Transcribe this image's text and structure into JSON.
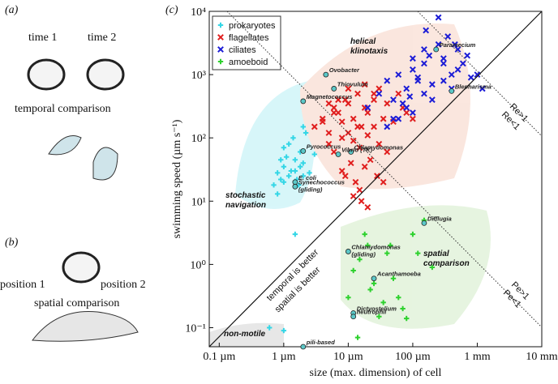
{
  "panels": {
    "a": "(a)",
    "time1": "time 1",
    "time2": "time 2",
    "temporal": "temporal comparison",
    "b": "(b)",
    "pos1": "position 1",
    "pos2": "position 2",
    "spatial": "spatial comparison",
    "c": "(c)"
  },
  "chart_data": {
    "type": "scatter",
    "x_label": "size (max. dimension) of cell",
    "y_label": "swimming speed (µm s⁻¹)",
    "log_x": true,
    "log_y": true,
    "legend": "upper left",
    "xlim": [
      0.07,
      10000
    ],
    "ylim": [
      0.05,
      10000
    ],
    "xticks": [
      {
        "value": 0.1,
        "label": "0.1 µm"
      },
      {
        "value": 1,
        "label": "1 µm"
      },
      {
        "value": 10,
        "label": "10 µm"
      },
      {
        "value": 100,
        "label": "100 µm"
      },
      {
        "value": 1000,
        "label": "1 mm"
      },
      {
        "value": 10000,
        "label": "10 mm"
      }
    ],
    "yticks": [
      {
        "value": 0.1,
        "label": "10⁻¹"
      },
      {
        "value": 1,
        "label": "10⁰"
      },
      {
        "value": 10,
        "label": "10¹"
      },
      {
        "value": 100,
        "label": "10²"
      },
      {
        "value": 1000,
        "label": "10³"
      },
      {
        "value": 10000,
        "label": "10⁴"
      }
    ],
    "series": [
      {
        "name": "prokaryotes",
        "color": "#33d6e6",
        "marker": "plus",
        "x": [
          0.8,
          1,
          1.2,
          1.5,
          1.8,
          2,
          0.9,
          1.1,
          1.3,
          1.6,
          2.5,
          3,
          1,
          0.7,
          1.4,
          2,
          2.2,
          0.9,
          1.8,
          1.5,
          1,
          2,
          1.2,
          0.8,
          1.7,
          1.5,
          1,
          0.6
        ],
        "values": [
          13,
          20,
          25,
          30,
          35,
          40,
          45,
          50,
          30,
          22,
          28,
          55,
          70,
          18,
          100,
          150,
          120,
          22,
          60,
          45,
          35,
          25,
          80,
          28,
          18,
          3,
          0.09,
          0.1
        ]
      },
      {
        "name": "flagellates",
        "color": "#e01e1e",
        "marker": "x",
        "x": [
          3,
          4,
          5,
          6,
          7,
          8,
          9,
          10,
          12,
          14,
          16,
          18,
          20,
          25,
          30,
          35,
          40,
          50,
          60,
          70,
          80,
          100,
          5,
          6,
          8,
          10,
          12,
          15,
          20,
          25,
          30,
          40,
          8,
          9,
          11,
          13,
          15,
          18,
          22,
          28,
          35,
          12,
          16,
          20,
          6,
          7,
          10,
          14,
          18,
          25,
          5,
          4
        ],
        "values": [
          150,
          200,
          120,
          300,
          250,
          180,
          400,
          350,
          200,
          500,
          150,
          300,
          250,
          400,
          600,
          200,
          350,
          180,
          500,
          300,
          250,
          200,
          80,
          60,
          100,
          120,
          90,
          70,
          110,
          150,
          80,
          60,
          30,
          25,
          40,
          20,
          15,
          35,
          45,
          25,
          20,
          12,
          10,
          8,
          250,
          400,
          600,
          150,
          700,
          500,
          350,
          180
        ]
      },
      {
        "name": "ciliates",
        "color": "#1c1cd6",
        "marker": "x",
        "x": [
          20,
          30,
          40,
          50,
          60,
          80,
          100,
          120,
          150,
          180,
          200,
          250,
          300,
          400,
          500,
          600,
          800,
          1000,
          1200,
          60,
          80,
          100,
          150,
          200,
          300,
          400,
          500,
          700,
          40,
          50,
          70,
          90,
          120,
          160,
          250,
          350,
          450,
          100,
          150,
          300
        ],
        "values": [
          300,
          500,
          800,
          400,
          1000,
          600,
          1200,
          900,
          1500,
          2000,
          700,
          3000,
          1800,
          1000,
          2500,
          1500,
          900,
          1000,
          600,
          200,
          300,
          250,
          500,
          400,
          800,
          600,
          1200,
          2000,
          150,
          200,
          350,
          450,
          800,
          5000,
          8000,
          4000,
          3000,
          1800,
          2500,
          1500
        ]
      },
      {
        "name": "amoeboid",
        "color": "#2ed12e",
        "marker": "plus",
        "x": [
          10,
          12,
          15,
          20,
          25,
          30,
          40,
          50,
          60,
          80,
          100,
          150,
          200,
          14,
          18,
          22,
          35,
          45,
          70,
          120
        ],
        "values": [
          0.3,
          0.8,
          1.2,
          2,
          0.5,
          0.15,
          1.5,
          0.6,
          0.3,
          0.14,
          3,
          5,
          0.9,
          0.07,
          3,
          0.4,
          0.25,
          2,
          0.2,
          1.5
        ]
      }
    ],
    "annotations": [
      {
        "lines": [
          "Paramecium"
        ],
        "x": 230,
        "y": 2500
      },
      {
        "lines": [
          "Ovobacter"
        ],
        "x": 4.5,
        "y": 1000
      },
      {
        "lines": [
          "Thiovulum"
        ],
        "x": 6,
        "y": 600
      },
      {
        "lines": [
          "Magnetococcus"
        ],
        "x": 2,
        "y": 380
      },
      {
        "lines": [
          "Blepharisma"
        ],
        "x": 400,
        "y": 550
      },
      {
        "lines": [
          "Pyrococcus"
        ],
        "x": 2,
        "y": 62
      },
      {
        "lines": [
          "Chlamydomonas"
        ],
        "x": 11,
        "y": 60
      },
      {
        "lines": [
          "Vibrio (TK)"
        ],
        "x": 7,
        "y": 55
      },
      {
        "lines": [
          "E. coli"
        ],
        "x": 1.5,
        "y": 20
      },
      {
        "lines": [
          "Synechococcus",
          "(gliding)"
        ],
        "x": 1.5,
        "y": 17
      },
      {
        "lines": [
          "Difflugia"
        ],
        "x": 150,
        "y": 4.5
      },
      {
        "lines": [
          "Chlamydomonas",
          "(gliding)"
        ],
        "x": 10,
        "y": 1.6
      },
      {
        "lines": [
          "Acanthamoeba"
        ],
        "x": 25,
        "y": 0.6
      },
      {
        "lines": [
          "Dictyostelium"
        ],
        "x": 12,
        "y": 0.17
      },
      {
        "lines": [
          "neutrophil"
        ],
        "x": 12,
        "y": 0.15
      },
      {
        "lines": [
          "pili-based"
        ],
        "x": 2,
        "y": 0.05
      }
    ],
    "regions": {
      "helical": [
        "helical",
        "klinotaxis"
      ],
      "stochastic": [
        "stochastic",
        "navigation"
      ],
      "spatial": [
        "spatial",
        "comparison"
      ],
      "nonmotile": [
        "non-motile"
      ]
    },
    "lines": {
      "temporal": "temporal is better",
      "spatialb": "spatial is better",
      "re_hi": "Re>1",
      "re_lo": "Re<1",
      "pe_hi": "Pe>1",
      "pe_lo": "Pe<1"
    }
  }
}
